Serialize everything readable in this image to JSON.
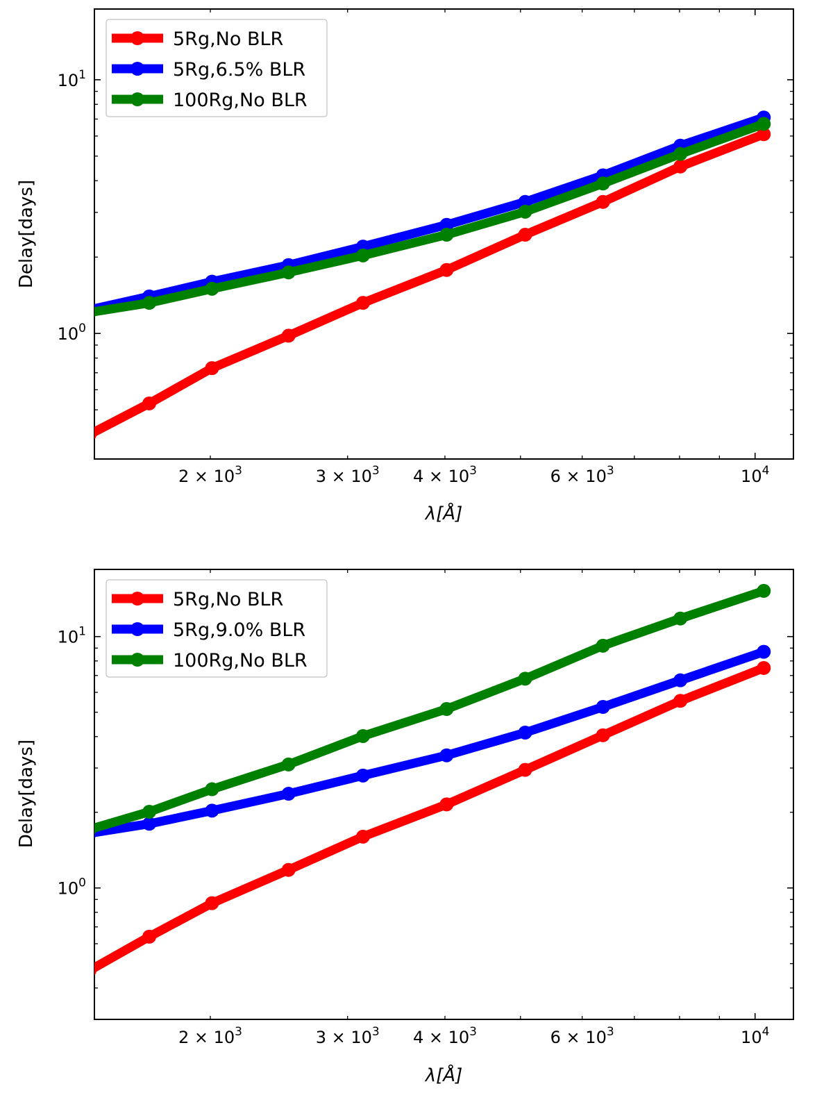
{
  "chart_data": [
    {
      "type": "line",
      "xscale": "log",
      "yscale": "log",
      "xlabel": "λ[Å]",
      "ylabel": "Delay[days]",
      "xlim": [
        1420,
        11200
      ],
      "ylim": [
        0.32,
        19
      ],
      "x": [
        1400,
        1670,
        2010,
        2520,
        3140,
        4020,
        5070,
        6380,
        8020,
        10260
      ],
      "x_ticks": [
        {
          "value": 2000,
          "base": "2 × 10",
          "exp": "3"
        },
        {
          "value": 3000,
          "base": "3 × 10",
          "exp": "3"
        },
        {
          "value": 4000,
          "base": "4 × 10",
          "exp": "3"
        },
        {
          "value": 6000,
          "base": "6 × 10",
          "exp": "3"
        },
        {
          "value": 10000,
          "base": "10",
          "exp": "4"
        }
      ],
      "y_ticks": [
        {
          "value": 1,
          "base": "10",
          "exp": "0"
        },
        {
          "value": 10,
          "base": "10",
          "exp": "1"
        }
      ],
      "series": [
        {
          "name": "5Rg,No BLR",
          "color": "#ff0000",
          "values": [
            0.4,
            0.53,
            0.73,
            0.98,
            1.32,
            1.78,
            2.45,
            3.3,
            4.55,
            6.1
          ]
        },
        {
          "name": "5Rg,6.5% BLR",
          "color": "#0000ff",
          "values": [
            1.24,
            1.4,
            1.6,
            1.86,
            2.2,
            2.68,
            3.3,
            4.2,
            5.5,
            7.1
          ]
        },
        {
          "name": "100Rg,No BLR",
          "color": "#008000",
          "values": [
            1.21,
            1.32,
            1.5,
            1.74,
            2.03,
            2.45,
            3.02,
            3.9,
            5.1,
            6.7
          ]
        }
      ]
    },
    {
      "type": "line",
      "xscale": "log",
      "yscale": "log",
      "xlabel": "λ[Å]",
      "ylabel": "Delay[days]",
      "xlim": [
        1420,
        11200
      ],
      "ylim": [
        0.3,
        18.5
      ],
      "x": [
        1400,
        1670,
        2010,
        2520,
        3140,
        4020,
        5070,
        6380,
        8020,
        10260
      ],
      "x_ticks": [
        {
          "value": 2000,
          "base": "2 × 10",
          "exp": "3"
        },
        {
          "value": 3000,
          "base": "3 × 10",
          "exp": "3"
        },
        {
          "value": 4000,
          "base": "4 × 10",
          "exp": "3"
        },
        {
          "value": 6000,
          "base": "6 × 10",
          "exp": "3"
        },
        {
          "value": 10000,
          "base": "10",
          "exp": "4"
        }
      ],
      "y_ticks": [
        {
          "value": 1,
          "base": "10",
          "exp": "0"
        },
        {
          "value": 10,
          "base": "10",
          "exp": "1"
        }
      ],
      "series": [
        {
          "name": "5Rg,No BLR",
          "color": "#ff0000",
          "values": [
            0.47,
            0.64,
            0.87,
            1.18,
            1.6,
            2.15,
            2.95,
            4.05,
            5.55,
            7.5
          ]
        },
        {
          "name": "5Rg,9.0% BLR",
          "color": "#0000ff",
          "values": [
            1.65,
            1.8,
            2.03,
            2.37,
            2.8,
            3.37,
            4.15,
            5.25,
            6.7,
            8.7
          ]
        },
        {
          "name": "100Rg,No BLR",
          "color": "#008000",
          "values": [
            1.71,
            2.01,
            2.47,
            3.1,
            4.02,
            5.15,
            6.8,
            9.2,
            11.8,
            15.2
          ]
        }
      ]
    }
  ]
}
